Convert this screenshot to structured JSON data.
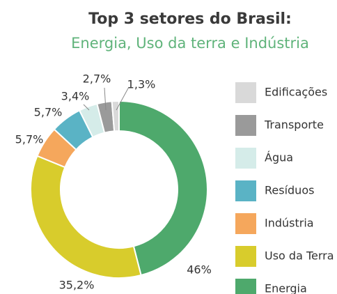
{
  "chart_data": {
    "type": "donut",
    "title": "Top 3 setores do Brasil:",
    "subtitle": "Energia, Uso da terra e Indústria",
    "categories": [
      "Energia",
      "Uso da Terra",
      "Indústria",
      "Resíduos",
      "Água",
      "Transporte",
      "Edificações"
    ],
    "values": [
      46,
      35.2,
      5.7,
      5.7,
      3.4,
      2.7,
      1.3
    ],
    "value_labels": [
      "46%",
      "35,2%",
      "5,7%",
      "5,7%",
      "3,4%",
      "2,7%",
      "1,3%"
    ],
    "colors": [
      "#4ea96c",
      "#d8cc2c",
      "#f5a75c",
      "#5ab3c5",
      "#d5ece9",
      "#9a9a9a",
      "#d9d9d9"
    ],
    "legend": "right"
  }
}
